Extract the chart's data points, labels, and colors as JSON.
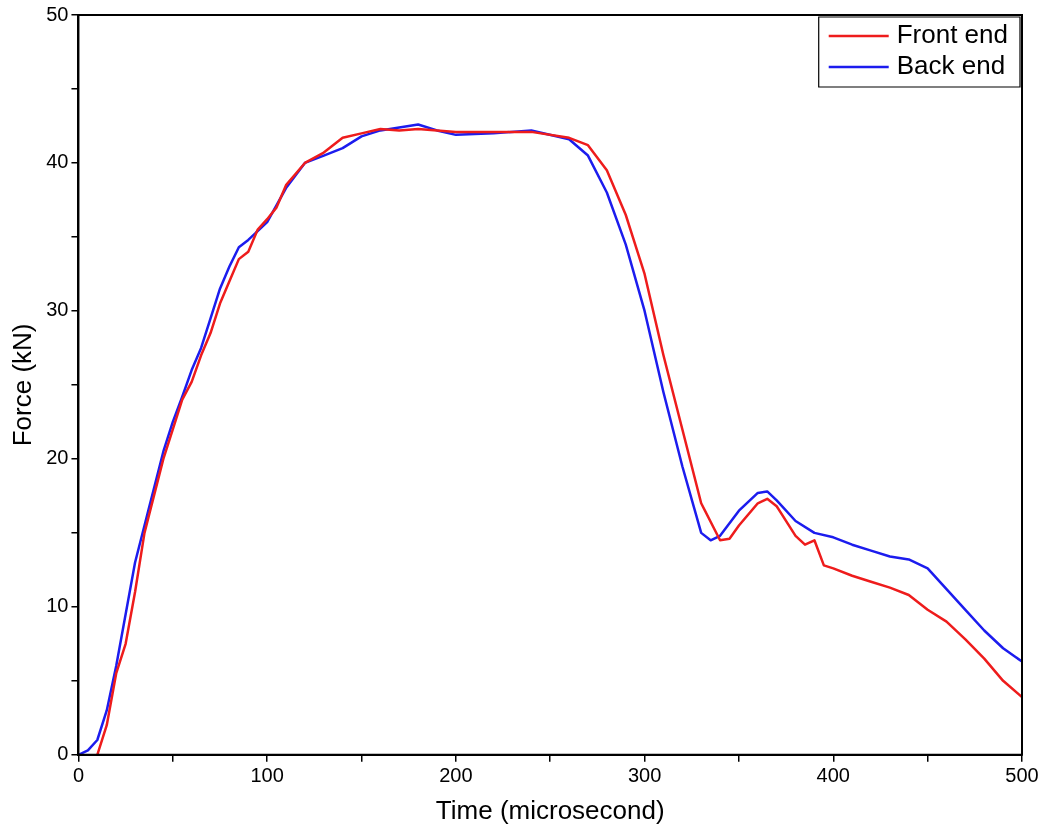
{
  "chart_data": {
    "type": "line",
    "xlabel": "Time (microsecond)",
    "ylabel": "Force (kN)",
    "xlim": [
      0,
      500
    ],
    "ylim": [
      0,
      50
    ],
    "xticks": [
      0,
      {
        "value": 50,
        "label": null
      },
      100,
      {
        "value": 150,
        "label": null
      },
      200,
      {
        "value": 250,
        "label": null
      },
      300,
      {
        "value": 350,
        "label": null
      },
      400,
      {
        "value": 450,
        "label": null
      },
      500
    ],
    "yticks": [
      0,
      {
        "value": 5,
        "label": null
      },
      10,
      {
        "value": 15,
        "label": null
      },
      20,
      {
        "value": 25,
        "label": null
      },
      30,
      {
        "value": 35,
        "label": null
      },
      40,
      {
        "value": 45,
        "label": null
      },
      50
    ],
    "grid": false,
    "legend": "top right",
    "marker": "none",
    "line_style": "solid",
    "series": [
      {
        "name": "Front end",
        "color": "#ee1c1c",
        "x": [
          10,
          15,
          20,
          25,
          30,
          35,
          40,
          45,
          50,
          55,
          60,
          65,
          70,
          75,
          80,
          85,
          90,
          95,
          100,
          105,
          110,
          120,
          130,
          140,
          150,
          160,
          170,
          180,
          190,
          200,
          220,
          240,
          260,
          270,
          280,
          290,
          300,
          310,
          320,
          330,
          340,
          345,
          350,
          360,
          365,
          370,
          380,
          385,
          390,
          395,
          400,
          410,
          420,
          430,
          440,
          450,
          460,
          470,
          480,
          490,
          500
        ],
        "values": [
          0,
          2,
          5.5,
          7.5,
          11,
          15,
          17.5,
          20,
          22,
          24,
          25.2,
          27,
          28.5,
          30.5,
          32,
          33.5,
          34,
          35.5,
          36.2,
          37,
          38.5,
          40,
          40.7,
          41.7,
          42,
          42.3,
          42.2,
          42.3,
          42.2,
          42.1,
          42.1,
          42.1,
          41.7,
          41.2,
          39.5,
          36.5,
          32.5,
          27,
          22,
          17,
          14.5,
          14.6,
          15.5,
          17,
          17.3,
          16.8,
          14.8,
          14.2,
          14.5,
          12.8,
          12.6,
          12.1,
          11.7,
          11.3,
          10.8,
          9.8,
          9,
          7.8,
          6.5,
          5,
          3.9
        ]
      },
      {
        "name": "Back end",
        "color": "#1c1cee",
        "x": [
          0,
          5,
          10,
          15,
          20,
          25,
          30,
          35,
          40,
          45,
          50,
          55,
          60,
          65,
          70,
          75,
          80,
          85,
          90,
          100,
          110,
          120,
          130,
          140,
          150,
          160,
          170,
          180,
          190,
          200,
          220,
          240,
          260,
          270,
          280,
          290,
          300,
          310,
          320,
          330,
          335,
          340,
          350,
          360,
          365,
          370,
          380,
          390,
          400,
          410,
          420,
          430,
          440,
          450,
          460,
          470,
          480,
          490,
          500
        ],
        "values": [
          0,
          0.3,
          1,
          3,
          6,
          9.5,
          13,
          15.5,
          18,
          20.5,
          22.5,
          24.2,
          26,
          27.5,
          29.5,
          31.5,
          33,
          34.3,
          34.8,
          36,
          38.3,
          40,
          40.5,
          41,
          41.8,
          42.2,
          42.4,
          42.6,
          42.2,
          41.9,
          42,
          42.2,
          41.6,
          40.5,
          38,
          34.5,
          30,
          24.5,
          19.5,
          15,
          14.5,
          14.8,
          16.5,
          17.7,
          17.8,
          17.2,
          15.8,
          15,
          14.7,
          14.2,
          13.8,
          13.4,
          13.2,
          12.6,
          11.2,
          9.8,
          8.4,
          7.2,
          6.3
        ]
      }
    ]
  }
}
